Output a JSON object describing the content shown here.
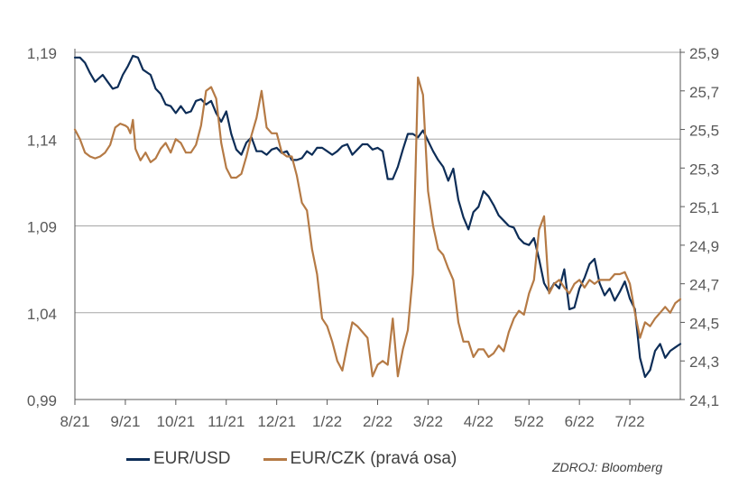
{
  "chart_data": {
    "type": "line",
    "title": "",
    "xlabel": "",
    "ylabel": "",
    "x_ticks": [
      "8/21",
      "9/21",
      "10/21",
      "11/21",
      "12/21",
      "1/22",
      "2/22",
      "3/22",
      "4/22",
      "5/22",
      "6/22",
      "7/22"
    ],
    "x_range": [
      0,
      12
    ],
    "y_left": {
      "ticks": [
        "1,19",
        "1,14",
        "1,09",
        "1,04",
        "0,99"
      ],
      "ylim": [
        0.99,
        1.19
      ]
    },
    "y_right": {
      "ticks": [
        "25,9",
        "25,7",
        "25,5",
        "25,3",
        "25,1",
        "24,9",
        "24,7",
        "24,5",
        "24,3",
        "24,1"
      ],
      "ylim": [
        24.1,
        25.9
      ]
    },
    "grid": "horizontal",
    "legend_position": "bottom",
    "series": [
      {
        "name": "EUR/USD",
        "axis": "left",
        "color": "#0d2d57",
        "x": [
          0.0,
          0.1,
          0.2,
          0.3,
          0.4,
          0.55,
          0.65,
          0.75,
          0.85,
          0.95,
          1.05,
          1.15,
          1.25,
          1.35,
          1.5,
          1.6,
          1.7,
          1.8,
          1.9,
          2.0,
          2.1,
          2.2,
          2.3,
          2.4,
          2.5,
          2.6,
          2.7,
          2.8,
          2.9,
          3.0,
          3.1,
          3.2,
          3.3,
          3.4,
          3.5,
          3.6,
          3.7,
          3.8,
          3.9,
          4.0,
          4.1,
          4.2,
          4.3,
          4.4,
          4.5,
          4.6,
          4.7,
          4.8,
          4.9,
          5.0,
          5.1,
          5.2,
          5.3,
          5.4,
          5.5,
          5.6,
          5.7,
          5.8,
          5.9,
          6.0,
          6.1,
          6.2,
          6.3,
          6.4,
          6.5,
          6.6,
          6.7,
          6.8,
          6.9,
          7.0,
          7.1,
          7.2,
          7.3,
          7.4,
          7.5,
          7.6,
          7.7,
          7.8,
          7.9,
          8.0,
          8.1,
          8.2,
          8.3,
          8.4,
          8.5,
          8.6,
          8.7,
          8.8,
          8.9,
          9.0,
          9.1,
          9.2,
          9.3,
          9.4,
          9.5,
          9.6,
          9.7,
          9.8,
          9.9,
          10.0,
          10.1,
          10.2,
          10.3,
          10.4,
          10.5,
          10.6,
          10.7,
          10.8,
          10.9,
          11.0,
          11.1,
          11.2,
          11.3,
          11.4,
          11.5,
          11.6,
          11.7,
          11.8,
          11.9,
          12.0
        ],
        "values": [
          1.187,
          1.187,
          1.184,
          1.178,
          1.173,
          1.177,
          1.173,
          1.169,
          1.17,
          1.177,
          1.182,
          1.188,
          1.187,
          1.18,
          1.177,
          1.169,
          1.166,
          1.16,
          1.159,
          1.155,
          1.159,
          1.155,
          1.156,
          1.162,
          1.163,
          1.16,
          1.162,
          1.155,
          1.15,
          1.156,
          1.143,
          1.134,
          1.131,
          1.138,
          1.141,
          1.133,
          1.133,
          1.131,
          1.134,
          1.135,
          1.132,
          1.133,
          1.128,
          1.128,
          1.129,
          1.133,
          1.131,
          1.135,
          1.135,
          1.133,
          1.131,
          1.133,
          1.136,
          1.137,
          1.131,
          1.134,
          1.137,
          1.137,
          1.134,
          1.135,
          1.133,
          1.117,
          1.117,
          1.124,
          1.134,
          1.143,
          1.143,
          1.141,
          1.145,
          1.139,
          1.133,
          1.128,
          1.124,
          1.116,
          1.123,
          1.105,
          1.095,
          1.088,
          1.098,
          1.101,
          1.11,
          1.107,
          1.102,
          1.096,
          1.093,
          1.09,
          1.089,
          1.083,
          1.08,
          1.079,
          1.083,
          1.071,
          1.057,
          1.052,
          1.057,
          1.054,
          1.065,
          1.042,
          1.043,
          1.054,
          1.06,
          1.068,
          1.071,
          1.057,
          1.05,
          1.054,
          1.047,
          1.052,
          1.058,
          1.048,
          1.042,
          1.014,
          1.003,
          1.007,
          1.018,
          1.022,
          1.014,
          1.018,
          1.02,
          1.022
        ]
      },
      {
        "name": "EUR/CZK (pravá osa)",
        "axis": "right",
        "color": "#b57a45",
        "x": [
          0.0,
          0.1,
          0.2,
          0.3,
          0.4,
          0.5,
          0.6,
          0.7,
          0.8,
          0.9,
          1.0,
          1.05,
          1.1,
          1.15,
          1.2,
          1.25,
          1.3,
          1.4,
          1.5,
          1.6,
          1.7,
          1.8,
          1.9,
          2.0,
          2.1,
          2.2,
          2.3,
          2.4,
          2.5,
          2.6,
          2.7,
          2.8,
          2.9,
          3.0,
          3.1,
          3.2,
          3.3,
          3.4,
          3.5,
          3.6,
          3.7,
          3.8,
          3.9,
          4.0,
          4.1,
          4.2,
          4.3,
          4.4,
          4.5,
          4.6,
          4.7,
          4.8,
          4.9,
          5.0,
          5.1,
          5.2,
          5.3,
          5.4,
          5.5,
          5.6,
          5.7,
          5.8,
          5.9,
          6.0,
          6.1,
          6.2,
          6.3,
          6.4,
          6.5,
          6.6,
          6.7,
          6.8,
          6.9,
          7.0,
          7.1,
          7.2,
          7.3,
          7.4,
          7.5,
          7.6,
          7.7,
          7.8,
          7.9,
          8.0,
          8.1,
          8.2,
          8.3,
          8.4,
          8.5,
          8.6,
          8.7,
          8.8,
          8.9,
          9.0,
          9.1,
          9.2,
          9.3,
          9.4,
          9.5,
          9.6,
          9.7,
          9.8,
          9.9,
          10.0,
          10.1,
          10.2,
          10.3,
          10.4,
          10.5,
          10.6,
          10.7,
          10.8,
          10.9,
          11.0,
          11.1,
          11.2,
          11.3,
          11.4,
          11.5,
          11.6,
          11.7,
          11.8,
          11.9,
          12.0
        ],
        "values": [
          25.5,
          25.45,
          25.38,
          25.36,
          25.35,
          25.36,
          25.38,
          25.42,
          25.51,
          25.53,
          25.52,
          25.51,
          25.48,
          25.55,
          25.4,
          25.37,
          25.34,
          25.38,
          25.33,
          25.35,
          25.4,
          25.43,
          25.38,
          25.45,
          25.43,
          25.38,
          25.38,
          25.42,
          25.52,
          25.7,
          25.72,
          25.66,
          25.43,
          25.3,
          25.25,
          25.25,
          25.27,
          25.36,
          25.47,
          25.56,
          25.7,
          25.51,
          25.48,
          25.48,
          25.38,
          25.36,
          25.36,
          25.26,
          25.12,
          25.08,
          24.88,
          24.75,
          24.52,
          24.48,
          24.4,
          24.3,
          24.25,
          24.38,
          24.5,
          24.48,
          24.45,
          24.42,
          24.22,
          24.28,
          24.3,
          24.28,
          24.52,
          24.22,
          24.36,
          24.46,
          24.75,
          25.77,
          25.68,
          25.18,
          25.0,
          24.88,
          24.85,
          24.78,
          24.72,
          24.5,
          24.4,
          24.4,
          24.32,
          24.36,
          24.36,
          24.32,
          24.34,
          24.38,
          24.35,
          24.45,
          24.52,
          24.56,
          24.54,
          24.65,
          24.72,
          24.98,
          25.05,
          24.65,
          24.7,
          24.72,
          24.68,
          24.65,
          24.7,
          24.72,
          24.68,
          24.72,
          24.7,
          24.72,
          24.72,
          24.72,
          24.75,
          24.75,
          24.76,
          24.7,
          24.55,
          24.42,
          24.5,
          24.48,
          24.52,
          24.55,
          24.58,
          24.55,
          24.6,
          24.62
        ]
      }
    ]
  },
  "legend": {
    "items": [
      {
        "label": "EUR/USD",
        "color": "#0d2d57"
      },
      {
        "label": "EUR/CZK (pravá osa)",
        "color": "#b57a45"
      }
    ]
  },
  "source": "ZDROJ: Bloomberg"
}
